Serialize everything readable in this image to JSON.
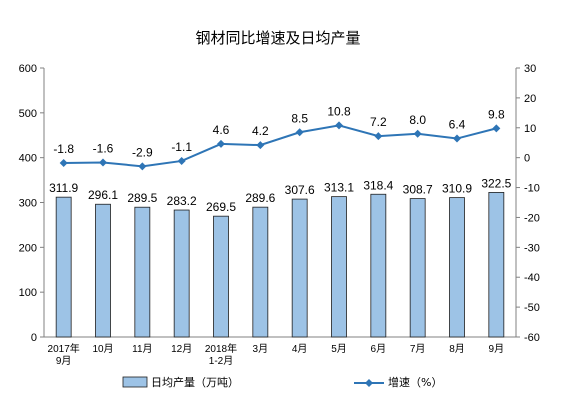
{
  "chart_data": {
    "type": "bar",
    "title": "钢材同比增速及日均产量",
    "categories": [
      [
        "2017年",
        "9月"
      ],
      [
        "10月"
      ],
      [
        "11月"
      ],
      [
        "12月"
      ],
      [
        "2018年",
        "1-2月"
      ],
      [
        "3月"
      ],
      [
        "4月"
      ],
      [
        "5月"
      ],
      [
        "6月"
      ],
      [
        "7月"
      ],
      [
        "8月"
      ],
      [
        "9月"
      ]
    ],
    "series": [
      {
        "name": "日均产量（万吨）",
        "type": "bar",
        "axis": "left",
        "color": "#9DC3E6",
        "values": [
          311.9,
          296.1,
          289.5,
          283.2,
          269.5,
          289.6,
          307.6,
          313.1,
          318.4,
          308.7,
          310.9,
          322.5
        ],
        "labels": [
          "311.9",
          "296.1",
          "289.5",
          "283.2",
          "269.5",
          "289.6",
          "307.6",
          "313.1",
          "318.4",
          "308.7",
          "310.9",
          "322.5"
        ]
      },
      {
        "name": "增速（%）",
        "type": "line",
        "axis": "right",
        "color": "#2E75B6",
        "values": [
          -1.8,
          -1.6,
          -2.9,
          -1.1,
          4.6,
          4.2,
          8.5,
          10.8,
          7.2,
          8.0,
          6.4,
          9.8
        ],
        "labels": [
          "-1.8",
          "-1.6",
          "-2.9",
          "-1.1",
          "4.6",
          "4.2",
          "8.5",
          "10.8",
          "7.2",
          "8.0",
          "6.4",
          "9.8"
        ]
      }
    ],
    "y_left": {
      "min": 0,
      "max": 600,
      "ticks": [
        "0",
        "100",
        "200",
        "300",
        "400",
        "500",
        "600"
      ]
    },
    "y_right": {
      "min": -60,
      "max": 30,
      "ticks": [
        "-60",
        "-50",
        "-40",
        "-30",
        "-20",
        "-10",
        "0",
        "10",
        "20",
        "30"
      ]
    },
    "grid": false,
    "legend": "bottom"
  }
}
